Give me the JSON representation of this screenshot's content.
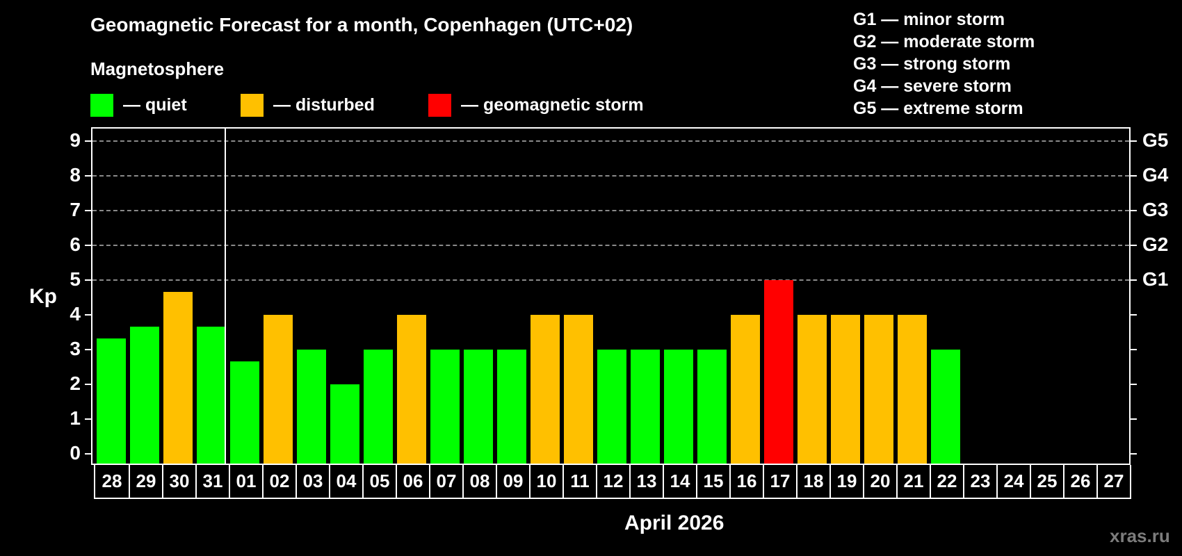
{
  "header": {
    "title": "Geomagnetic Forecast for a month, Copenhagen (UTC+02)",
    "subtitle": "Magnetosphere",
    "legend": [
      {
        "label": "— quiet",
        "color": "#00FF00"
      },
      {
        "label": "— disturbed",
        "color": "#FFC000"
      },
      {
        "label": "— geomagnetic storm",
        "color": "#FF0000"
      }
    ],
    "storm_levels": [
      "G1 — minor storm",
      "G2 — moderate storm",
      "G3 — strong storm",
      "G4 — severe storm",
      "G5 — extreme storm"
    ]
  },
  "axis": {
    "ylabel": "Kp",
    "xlabel": "April 2026",
    "yticks": [
      "0",
      "1",
      "2",
      "3",
      "4",
      "5",
      "6",
      "7",
      "8",
      "9"
    ],
    "right_ticks": {
      "5": "G1",
      "6": "G2",
      "7": "G3",
      "8": "G4",
      "9": "G5"
    }
  },
  "watermark": "xras.ru",
  "chart_data": {
    "type": "bar",
    "title": "Geomagnetic Forecast for a month, Copenhagen (UTC+02)",
    "subtitle": "Magnetosphere",
    "xlabel": "April 2026",
    "ylabel": "Kp",
    "ylim": [
      0,
      9
    ],
    "grid": "dashed horizontal at 5,6,7,8,9",
    "legend_position": "top",
    "categories": [
      "28",
      "29",
      "30",
      "31",
      "01",
      "02",
      "03",
      "04",
      "05",
      "06",
      "07",
      "08",
      "09",
      "10",
      "11",
      "12",
      "13",
      "14",
      "15",
      "16",
      "17",
      "18",
      "19",
      "20",
      "21",
      "22",
      "23",
      "24",
      "25",
      "26",
      "27"
    ],
    "values": [
      3.33,
      3.67,
      4.67,
      3.67,
      2.67,
      4,
      3,
      2,
      3,
      4,
      3,
      3,
      3,
      4,
      4,
      3,
      3,
      3,
      3,
      4,
      5,
      4,
      4,
      4,
      4,
      3,
      null,
      null,
      null,
      null,
      null
    ],
    "status": [
      "quiet",
      "quiet",
      "disturbed",
      "quiet",
      "quiet",
      "disturbed",
      "quiet",
      "quiet",
      "quiet",
      "disturbed",
      "quiet",
      "quiet",
      "quiet",
      "disturbed",
      "disturbed",
      "quiet",
      "quiet",
      "quiet",
      "quiet",
      "disturbed",
      "storm",
      "disturbed",
      "disturbed",
      "disturbed",
      "disturbed",
      "quiet",
      null,
      null,
      null,
      null,
      null
    ],
    "status_colors": {
      "quiet": "#00FF00",
      "disturbed": "#FFC000",
      "storm": "#FF0000"
    },
    "month_separator_after": "31",
    "secondary_axis": {
      "5": "G1",
      "6": "G2",
      "7": "G3",
      "8": "G4",
      "9": "G5"
    }
  }
}
